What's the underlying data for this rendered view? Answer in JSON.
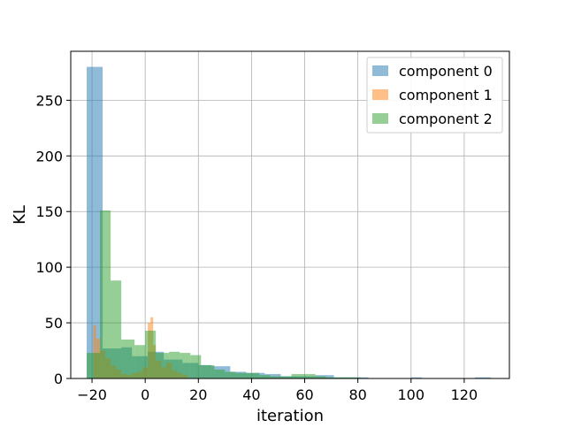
{
  "chart_data": {
    "type": "bar",
    "title": "",
    "xlabel": "iteration",
    "ylabel": "KL",
    "xlim": [
      -28,
      137
    ],
    "ylim": [
      0,
      294
    ],
    "xticks": [
      -20,
      0,
      20,
      40,
      60,
      80,
      100,
      120
    ],
    "xtick_labels": [
      "−20",
      "0",
      "20",
      "40",
      "60",
      "80",
      "100",
      "120"
    ],
    "yticks": [
      0,
      50,
      100,
      150,
      200,
      250
    ],
    "grid": true,
    "legend_position": "top-right",
    "bar_alpha": 0.5,
    "series": [
      {
        "name": "component 0",
        "color": "#1f77b4",
        "bins": [
          [
            -22,
            -16,
            280
          ],
          [
            -16,
            -9,
            27
          ],
          [
            -9,
            -5,
            28
          ],
          [
            -5,
            1,
            20
          ],
          [
            1,
            7,
            24
          ],
          [
            7,
            14,
            17
          ],
          [
            14,
            20,
            14
          ],
          [
            20,
            25,
            12
          ],
          [
            25,
            32,
            11
          ],
          [
            32,
            38,
            6
          ],
          [
            38,
            45,
            5
          ],
          [
            45,
            51,
            4
          ],
          [
            51,
            58,
            2
          ],
          [
            58,
            64,
            2
          ],
          [
            64,
            71,
            3
          ],
          [
            71,
            77,
            1
          ],
          [
            77,
            84,
            1
          ],
          [
            84,
            100,
            0
          ],
          [
            100,
            104,
            1
          ],
          [
            104,
            124,
            0
          ],
          [
            124,
            130,
            1
          ]
        ]
      },
      {
        "name": "component 1",
        "color": "#ff7f0e",
        "bins": [
          [
            -19.5,
            -18.5,
            48
          ],
          [
            -18.5,
            -17,
            36
          ],
          [
            -17,
            -15,
            25
          ],
          [
            -15,
            -13,
            18
          ],
          [
            -13,
            -11,
            12
          ],
          [
            -11,
            -9,
            8
          ],
          [
            -9,
            -7,
            4
          ],
          [
            -7,
            -5,
            3
          ],
          [
            -5,
            -3,
            5
          ],
          [
            -3,
            -1,
            6
          ],
          [
            -1,
            1,
            10
          ],
          [
            1,
            2,
            50
          ],
          [
            2,
            3,
            55
          ],
          [
            3,
            4,
            30
          ],
          [
            4,
            6,
            16
          ],
          [
            6,
            8,
            10
          ],
          [
            8,
            10,
            14
          ],
          [
            10,
            12,
            7
          ],
          [
            12,
            14,
            5
          ],
          [
            14,
            16,
            3
          ]
        ]
      },
      {
        "name": "component 2",
        "color": "#2ca02c",
        "bins": [
          [
            -22,
            -17,
            23
          ],
          [
            -17,
            -13,
            151
          ],
          [
            -13,
            -9,
            88
          ],
          [
            -9,
            -4,
            35
          ],
          [
            -4,
            0,
            30
          ],
          [
            0,
            4,
            43
          ],
          [
            4,
            9,
            23
          ],
          [
            9,
            13,
            24
          ],
          [
            13,
            17,
            23
          ],
          [
            17,
            21,
            21
          ],
          [
            21,
            26,
            12
          ],
          [
            26,
            30,
            8
          ],
          [
            30,
            34,
            6
          ],
          [
            34,
            38,
            5
          ],
          [
            38,
            43,
            5
          ],
          [
            43,
            47,
            3
          ],
          [
            47,
            51,
            2
          ],
          [
            51,
            55,
            2
          ],
          [
            55,
            60,
            4
          ],
          [
            60,
            64,
            4
          ],
          [
            64,
            68,
            2
          ],
          [
            68,
            72,
            1
          ],
          [
            72,
            77,
            1
          ],
          [
            77,
            81,
            1
          ]
        ]
      }
    ]
  }
}
